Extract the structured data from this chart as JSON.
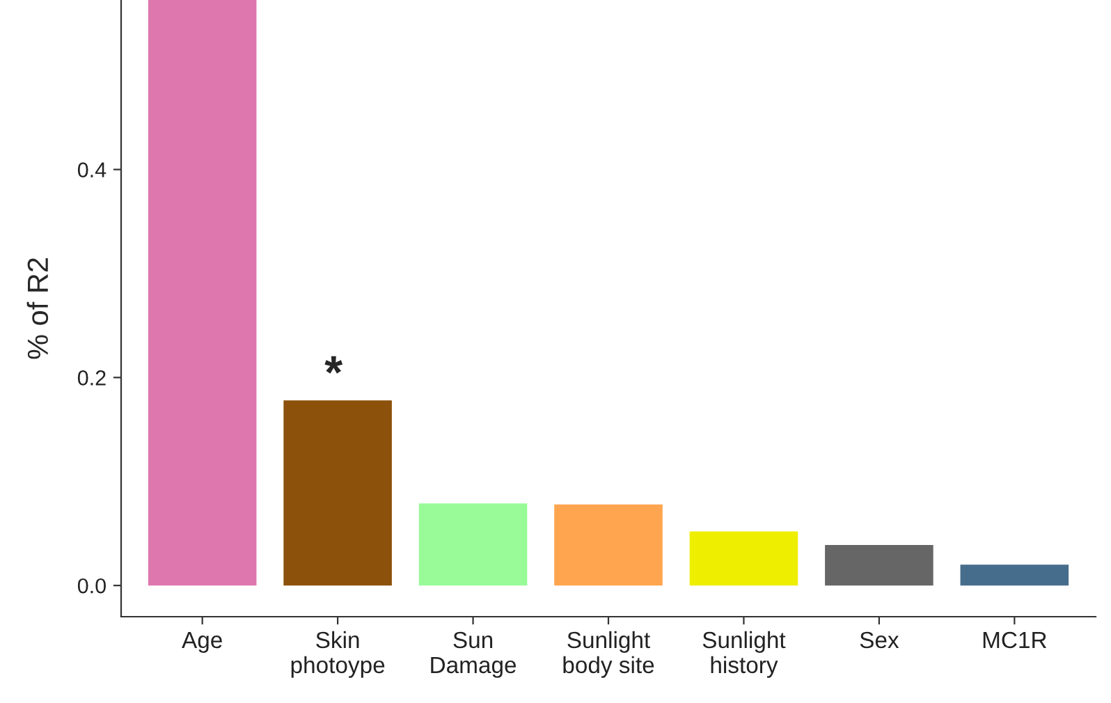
{
  "chart_data": {
    "type": "bar",
    "ylabel": "% of R2",
    "categories": [
      "Age",
      "Skin\nphotoype",
      "Sun\nDamage",
      "Sunlight\nbody site",
      "Sunlight\nhistory",
      "Sex",
      "MC1R"
    ],
    "values": [
      0.563,
      0.178,
      0.079,
      0.078,
      0.052,
      0.039,
      0.02
    ],
    "colors": [
      "#de77ae",
      "#8c510a",
      "#98fb98",
      "#ffa54f",
      "#eeee00",
      "#666666",
      "#466d8c"
    ],
    "ylim": [
      -0.03,
      0.563
    ],
    "yticks": [
      {
        "value": 0,
        "label": "0.0"
      },
      0.2,
      0.4
    ],
    "grid": false,
    "annotations": [
      "*"
    ]
  }
}
